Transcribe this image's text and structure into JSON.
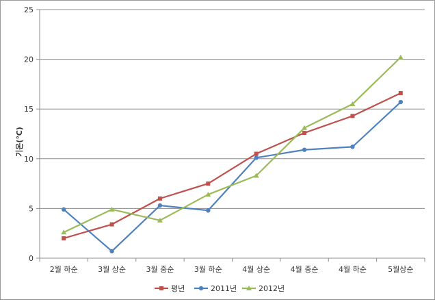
{
  "chart_data": {
    "type": "line",
    "title": "",
    "xlabel": "",
    "ylabel": "기온(℃)",
    "categories": [
      "2월 하순",
      "3월 상순",
      "3월 중순",
      "3월 하순",
      "4월 상순",
      "4월 중순",
      "4월 하순",
      "5월상순"
    ],
    "ylim": [
      0,
      25
    ],
    "yticks": [
      0,
      5,
      10,
      15,
      20,
      25
    ],
    "grid": true,
    "legend_position": "bottom",
    "series": [
      {
        "name": "평년",
        "color": "#c0504d",
        "marker": "square",
        "values": [
          2.0,
          3.4,
          6.0,
          7.5,
          10.5,
          12.6,
          14.3,
          16.6
        ]
      },
      {
        "name": "2011년",
        "color": "#4f81bd",
        "marker": "circle",
        "values": [
          4.9,
          0.7,
          5.3,
          4.8,
          10.1,
          10.9,
          11.2,
          15.7
        ]
      },
      {
        "name": "2012년",
        "color": "#9bbb59",
        "marker": "triangle",
        "values": [
          2.6,
          4.9,
          3.8,
          6.4,
          8.3,
          13.1,
          15.5,
          20.2
        ]
      }
    ]
  }
}
